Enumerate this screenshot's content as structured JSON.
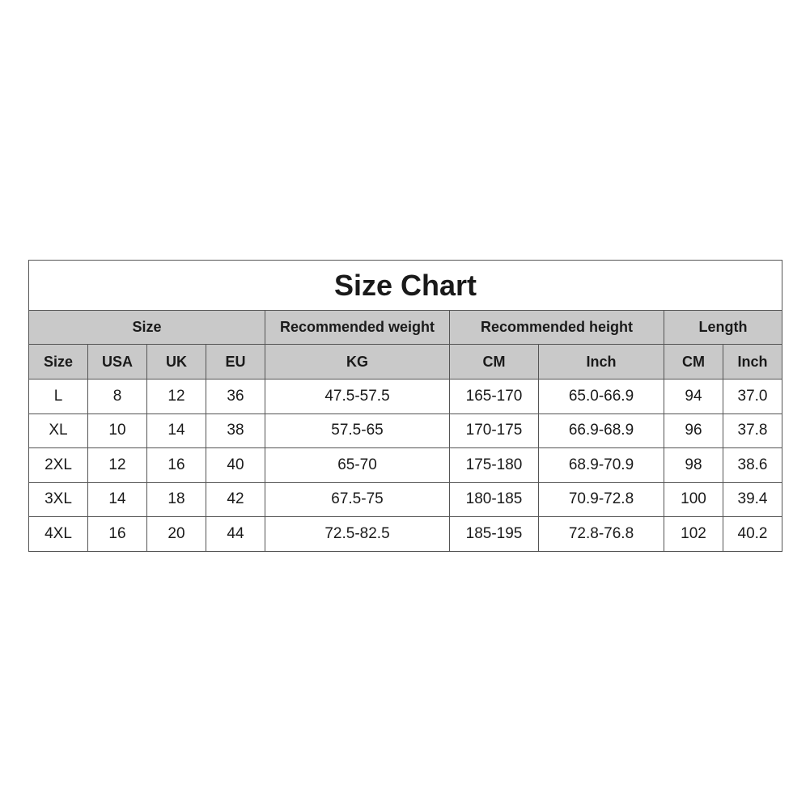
{
  "title": "Size Chart",
  "group_headers": [
    {
      "label": "Size",
      "span": 4
    },
    {
      "label": "Recommended weight",
      "span": 1
    },
    {
      "label": "Recommended height",
      "span": 2
    },
    {
      "label": "Length",
      "span": 2
    }
  ],
  "columns": [
    "Size",
    "USA",
    "UK",
    "EU",
    "KG",
    "CM",
    "Inch",
    "CM",
    "Inch"
  ],
  "rows": [
    [
      "L",
      "8",
      "12",
      "36",
      "47.5-57.5",
      "165-170",
      "65.0-66.9",
      "94",
      "37.0"
    ],
    [
      "XL",
      "10",
      "14",
      "38",
      "57.5-65",
      "170-175",
      "66.9-68.9",
      "96",
      "37.8"
    ],
    [
      "2XL",
      "12",
      "16",
      "40",
      "65-70",
      "175-180",
      "68.9-70.9",
      "98",
      "38.6"
    ],
    [
      "3XL",
      "14",
      "18",
      "42",
      "67.5-75",
      "180-185",
      "70.9-72.8",
      "100",
      "39.4"
    ],
    [
      "4XL",
      "16",
      "20",
      "44",
      "72.5-82.5",
      "185-195",
      "72.8-76.8",
      "102",
      "40.2"
    ]
  ],
  "colors": {
    "header_bg": "#c9c9c9",
    "border": "#555555",
    "text": "#1a1a1a"
  }
}
